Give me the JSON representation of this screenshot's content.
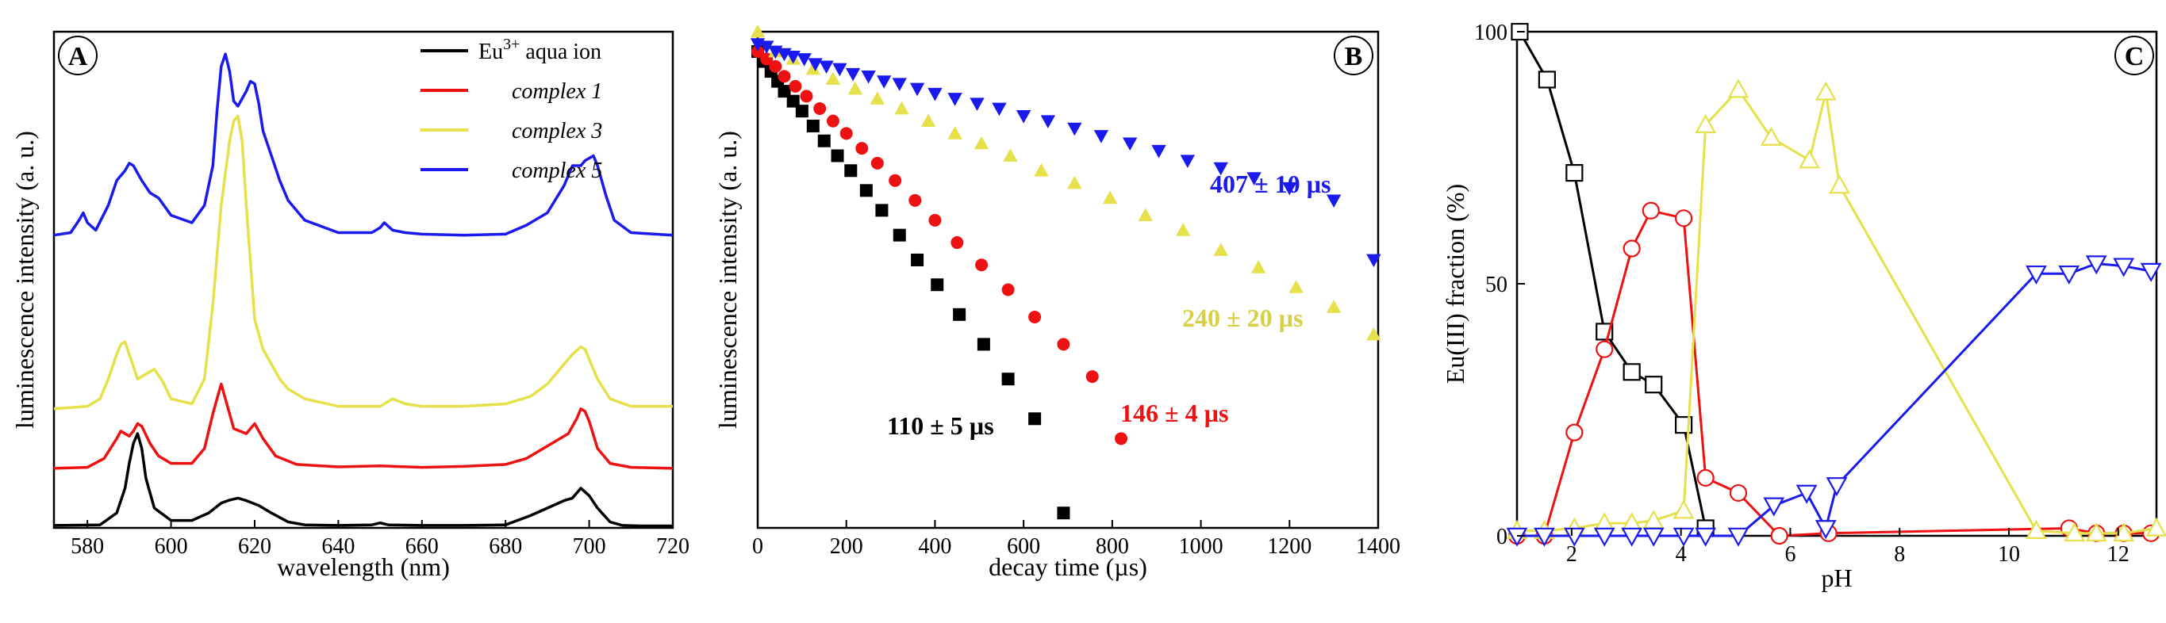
{
  "colors": {
    "black": "#000000",
    "red": "#ee1111",
    "yellow": "#e6e04a",
    "blue": "#1a1aee"
  },
  "chart_data": [
    {
      "panel": "A",
      "type": "line",
      "xlabel": "wavelength (nm)",
      "ylabel": "luminescence intensity (a. u.)",
      "xlim": [
        572,
        720
      ],
      "ylim": [
        0,
        10
      ],
      "xticks": [
        580,
        600,
        620,
        640,
        660,
        680,
        700,
        720
      ],
      "legend": {
        "placement": "top-right",
        "entries": [
          {
            "base": "Eu",
            "sup": "3+",
            "rest": " aqua ion",
            "italic": false,
            "color": "#000000"
          },
          {
            "base": "complex 1",
            "sup": "",
            "rest": "",
            "italic": true,
            "color": "#ee1111"
          },
          {
            "base": "complex 3",
            "sup": "",
            "rest": "",
            "italic": true,
            "color": "#e6e04a"
          },
          {
            "base": "complex 5",
            "sup": "",
            "rest": "",
            "italic": true,
            "color": "#1a1aee"
          }
        ]
      },
      "series": [
        {
          "name": "Eu3+ aqua ion",
          "color": "#000000",
          "x": [
            572,
            583,
            587,
            589,
            590,
            591,
            592,
            593,
            594,
            596,
            600,
            605,
            609,
            612,
            614,
            616,
            618,
            621,
            624,
            628,
            632,
            640,
            648,
            650,
            652,
            660,
            670,
            680,
            686,
            690,
            694,
            696,
            698,
            700,
            702,
            705,
            708,
            712,
            720
          ],
          "y": [
            0.05,
            0.06,
            0.3,
            0.8,
            1.3,
            1.7,
            1.9,
            1.6,
            1.0,
            0.4,
            0.15,
            0.15,
            0.3,
            0.5,
            0.56,
            0.6,
            0.55,
            0.45,
            0.3,
            0.12,
            0.06,
            0.05,
            0.06,
            0.1,
            0.06,
            0.05,
            0.05,
            0.06,
            0.25,
            0.4,
            0.55,
            0.6,
            0.8,
            0.65,
            0.4,
            0.12,
            0.05,
            0.04,
            0.04
          ]
        },
        {
          "name": "complex 1",
          "color": "#ee1111",
          "x": [
            572,
            580,
            584,
            587,
            588,
            590,
            591,
            592,
            593,
            595,
            597,
            600,
            605,
            608,
            610,
            611,
            612,
            613,
            615,
            618,
            620,
            622,
            625,
            630,
            640,
            650,
            660,
            670,
            680,
            685,
            690,
            695,
            697,
            698,
            699,
            700,
            702,
            705,
            710,
            720
          ],
          "y": [
            1.2,
            1.22,
            1.4,
            1.8,
            1.95,
            1.85,
            1.95,
            2.1,
            2.05,
            1.7,
            1.45,
            1.3,
            1.3,
            1.6,
            2.3,
            2.6,
            2.9,
            2.6,
            2.0,
            1.9,
            2.1,
            1.8,
            1.45,
            1.28,
            1.23,
            1.25,
            1.22,
            1.24,
            1.28,
            1.4,
            1.65,
            1.9,
            2.2,
            2.4,
            2.35,
            2.15,
            1.6,
            1.3,
            1.22,
            1.2
          ]
        },
        {
          "name": "complex 3",
          "color": "#e6e04a",
          "x": [
            572,
            580,
            583,
            585,
            587,
            588,
            589,
            590,
            592,
            594,
            596,
            598,
            600,
            605,
            608,
            610,
            612,
            614,
            615,
            616,
            617,
            618,
            620,
            622,
            624,
            626,
            628,
            632,
            640,
            650,
            653,
            656,
            660,
            670,
            680,
            686,
            690,
            694,
            696,
            698,
            699,
            700,
            702,
            705,
            710,
            720
          ],
          "y": [
            2.4,
            2.45,
            2.6,
            3.0,
            3.5,
            3.7,
            3.75,
            3.5,
            3.0,
            3.1,
            3.2,
            2.95,
            2.6,
            2.5,
            3.0,
            4.5,
            6.5,
            7.8,
            8.2,
            8.3,
            7.8,
            6.5,
            4.2,
            3.6,
            3.3,
            3.0,
            2.8,
            2.6,
            2.45,
            2.45,
            2.6,
            2.5,
            2.45,
            2.45,
            2.5,
            2.65,
            2.9,
            3.3,
            3.5,
            3.65,
            3.6,
            3.4,
            3.0,
            2.6,
            2.45,
            2.45
          ]
        },
        {
          "name": "complex 5",
          "color": "#1a1aee",
          "x": [
            572,
            576,
            578,
            579,
            580,
            582,
            585,
            587,
            589,
            590,
            591,
            593,
            595,
            597,
            600,
            605,
            608,
            610,
            611,
            612,
            613,
            614,
            615,
            616,
            618,
            619,
            620,
            621,
            622,
            624,
            626,
            628,
            632,
            640,
            648,
            650,
            651,
            653,
            656,
            660,
            670,
            680,
            685,
            690,
            694,
            696,
            698,
            699,
            700,
            701,
            702,
            704,
            706,
            710,
            720
          ],
          "y": [
            5.9,
            5.95,
            6.2,
            6.35,
            6.15,
            6.0,
            6.5,
            7.0,
            7.2,
            7.35,
            7.3,
            7.0,
            6.75,
            6.65,
            6.3,
            6.15,
            6.5,
            7.3,
            8.4,
            9.3,
            9.55,
            9.2,
            8.6,
            8.5,
            8.8,
            9.0,
            8.95,
            8.55,
            8.0,
            7.5,
            7.0,
            6.6,
            6.2,
            5.95,
            5.95,
            6.05,
            6.15,
            6.0,
            5.95,
            5.92,
            5.9,
            5.92,
            6.1,
            6.35,
            6.9,
            7.3,
            7.3,
            7.4,
            7.45,
            7.5,
            7.3,
            6.7,
            6.2,
            5.95,
            5.9
          ]
        }
      ]
    },
    {
      "panel": "B",
      "type": "scatter",
      "xlabel": "decay time (µs)",
      "ylabel": "luminescence intensity (a. u.)",
      "xlim": [
        0,
        1400
      ],
      "ylim": [
        0,
        10
      ],
      "xticks": [
        0,
        200,
        400,
        600,
        800,
        1000,
        1200,
        1400
      ],
      "series": [
        {
          "name": "Eu3+ aqua ion",
          "color": "#000000",
          "marker": "square",
          "label": "110 ± 5 µs",
          "x": [
            0,
            15,
            30,
            45,
            60,
            80,
            100,
            125,
            150,
            180,
            210,
            245,
            280,
            320,
            360,
            405,
            455,
            510,
            565,
            625,
            690
          ],
          "y": [
            9.6,
            9.4,
            9.2,
            9.0,
            8.8,
            8.6,
            8.4,
            8.1,
            7.8,
            7.5,
            7.2,
            6.8,
            6.4,
            5.9,
            5.4,
            4.9,
            4.3,
            3.7,
            3.0,
            2.2,
            0.3
          ]
        },
        {
          "name": "complex 1",
          "color": "#ee1111",
          "marker": "circle",
          "label": "146 ± 4 µs",
          "x": [
            0,
            20,
            40,
            60,
            85,
            110,
            140,
            170,
            200,
            235,
            270,
            310,
            355,
            400,
            450,
            505,
            565,
            625,
            690,
            755,
            820
          ],
          "y": [
            9.6,
            9.45,
            9.3,
            9.1,
            8.9,
            8.7,
            8.45,
            8.2,
            7.95,
            7.65,
            7.35,
            7.0,
            6.6,
            6.2,
            5.75,
            5.3,
            4.8,
            4.25,
            3.7,
            3.05,
            1.8
          ]
        },
        {
          "name": "complex 3",
          "color": "#e6e04a",
          "marker": "triangle-up",
          "label": "240 ± 20 µs",
          "x": [
            0,
            40,
            80,
            125,
            170,
            220,
            270,
            325,
            385,
            445,
            505,
            570,
            640,
            715,
            795,
            875,
            960,
            1045,
            1130,
            1215,
            1300,
            1390
          ],
          "y": [
            10.0,
            9.6,
            9.45,
            9.25,
            9.05,
            8.85,
            8.65,
            8.45,
            8.2,
            7.95,
            7.75,
            7.5,
            7.2,
            6.95,
            6.65,
            6.3,
            6.0,
            5.6,
            5.25,
            4.85,
            4.45,
            3.9
          ]
        },
        {
          "name": "complex 5",
          "color": "#1a1aee",
          "marker": "triangle-down",
          "label": "407 ± 10 µs",
          "x": [
            0,
            20,
            40,
            60,
            80,
            105,
            130,
            155,
            185,
            215,
            250,
            285,
            320,
            360,
            400,
            445,
            495,
            545,
            600,
            655,
            715,
            775,
            840,
            905,
            970,
            1045,
            1120,
            1200,
            1300,
            1390
          ],
          "y": [
            9.75,
            9.7,
            9.6,
            9.55,
            9.5,
            9.45,
            9.35,
            9.3,
            9.25,
            9.15,
            9.1,
            9.0,
            8.95,
            8.85,
            8.75,
            8.65,
            8.55,
            8.45,
            8.3,
            8.2,
            8.05,
            7.9,
            7.75,
            7.6,
            7.4,
            7.25,
            7.05,
            6.85,
            6.6,
            5.4
          ]
        }
      ]
    },
    {
      "panel": "C",
      "type": "line",
      "xlabel": "pH",
      "ylabel": "Eu(III) fraction (%)",
      "xlim": [
        1,
        12.7
      ],
      "ylim": [
        0,
        100
      ],
      "xticks": [
        2,
        4,
        6,
        8,
        10,
        12
      ],
      "yticks": [
        0,
        50,
        100
      ],
      "series": [
        {
          "name": "Eu3+ aqua ion",
          "color": "#000000",
          "marker": "square",
          "x": [
            1.05,
            1.55,
            2.05,
            2.6,
            3.1,
            3.5,
            4.05,
            4.45
          ],
          "y": [
            100,
            90.5,
            72,
            40.5,
            32.5,
            30,
            22,
            1.5
          ]
        },
        {
          "name": "complex 1",
          "color": "#ee1111",
          "marker": "circle",
          "x": [
            1.0,
            1.5,
            2.05,
            2.6,
            3.1,
            3.45,
            4.05,
            4.45,
            5.05,
            5.8,
            6.7,
            11.1,
            11.6,
            12.1,
            12.6
          ],
          "y": [
            0,
            0,
            20.5,
            37,
            57,
            64.5,
            63,
            11.5,
            8.5,
            0,
            0.5,
            1.5,
            0.5,
            0.5,
            0.5
          ]
        },
        {
          "name": "complex 3",
          "color": "#e6e04a",
          "marker": "triangle-up",
          "x": [
            1.0,
            1.5,
            2.05,
            2.6,
            3.1,
            3.5,
            4.05,
            4.45,
            5.05,
            5.65,
            6.35,
            6.65,
            6.9,
            10.5,
            11.2,
            11.6,
            12.1,
            12.7
          ],
          "y": [
            1,
            1,
            1.5,
            2.5,
            2.5,
            3,
            5,
            81.5,
            88.5,
            79,
            74.5,
            88,
            69.5,
            1,
            0.5,
            0.5,
            0.5,
            1.5
          ]
        },
        {
          "name": "complex 5",
          "color": "#1a1aee",
          "marker": "triangle-down",
          "x": [
            1.0,
            1.5,
            2.05,
            2.6,
            3.1,
            3.5,
            4.05,
            4.45,
            5.05,
            5.7,
            6.3,
            6.65,
            6.85,
            10.5,
            11.1,
            11.6,
            12.1,
            12.6
          ],
          "y": [
            0,
            0,
            0,
            0,
            0,
            0,
            0,
            0,
            0,
            6,
            8.5,
            1.5,
            10,
            52,
            52,
            54,
            53.5,
            52.5
          ]
        }
      ]
    }
  ]
}
